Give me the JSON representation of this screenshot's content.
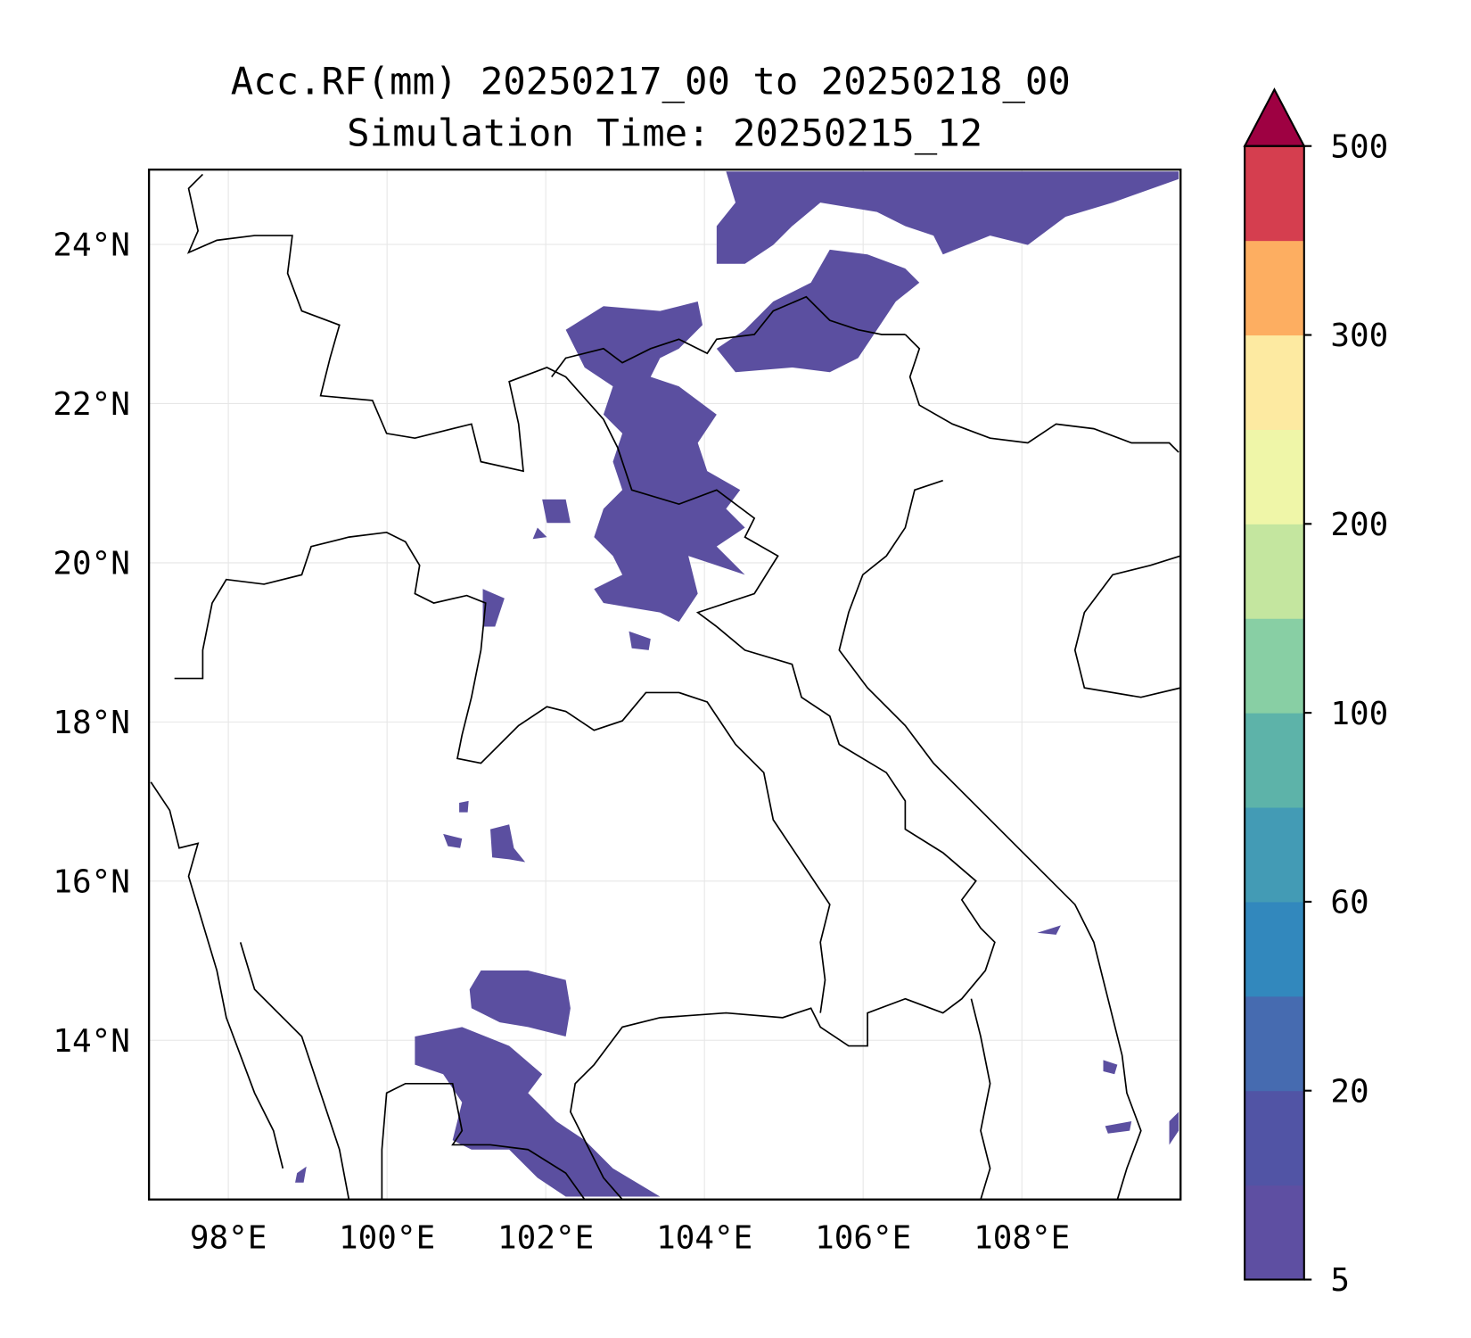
{
  "title": {
    "line1": "Acc.RF(mm) 20250217_00 to 20250218_00",
    "line2": "Simulation Time: 20250215_12"
  },
  "map": {
    "lon_range": [
      97.0,
      110.0
    ],
    "lat_range": [
      12.0,
      24.94
    ],
    "x_ticks": [
      {
        "value": 98,
        "label": "98°E"
      },
      {
        "value": 100,
        "label": "100°E"
      },
      {
        "value": 102,
        "label": "102°E"
      },
      {
        "value": 104,
        "label": "104°E"
      },
      {
        "value": 106,
        "label": "106°E"
      },
      {
        "value": 108,
        "label": "108°E"
      }
    ],
    "y_ticks": [
      {
        "value": 14,
        "label": "14°N"
      },
      {
        "value": 16,
        "label": "16°N"
      },
      {
        "value": 18,
        "label": "18°N"
      },
      {
        "value": 20,
        "label": "20°N"
      },
      {
        "value": 22,
        "label": "22°N"
      },
      {
        "value": 24,
        "label": "24°N"
      }
    ],
    "rain_color": "#5b4fa0"
  },
  "colorbar": {
    "levels": [
      5,
      10,
      20,
      40,
      60,
      80,
      100,
      150,
      200,
      250,
      300,
      400,
      500
    ],
    "colors": [
      "#5e4fa2",
      "#5154a5",
      "#466bb0",
      "#3288bd",
      "#439bb5",
      "#5db3a9",
      "#88cfa4",
      "#c4e69f",
      "#eff6a8",
      "#fdeaa1",
      "#fdae61",
      "#d53e4f"
    ],
    "extend_color": "#9e0142",
    "tick_labels": [
      {
        "level_index": 0,
        "label": "5"
      },
      {
        "level_index": 2,
        "label": "20"
      },
      {
        "level_index": 4,
        "label": "60"
      },
      {
        "level_index": 6,
        "label": "100"
      },
      {
        "level_index": 8,
        "label": "200"
      },
      {
        "level_index": 10,
        "label": "300"
      },
      {
        "level_index": 12,
        "label": "500"
      }
    ]
  }
}
